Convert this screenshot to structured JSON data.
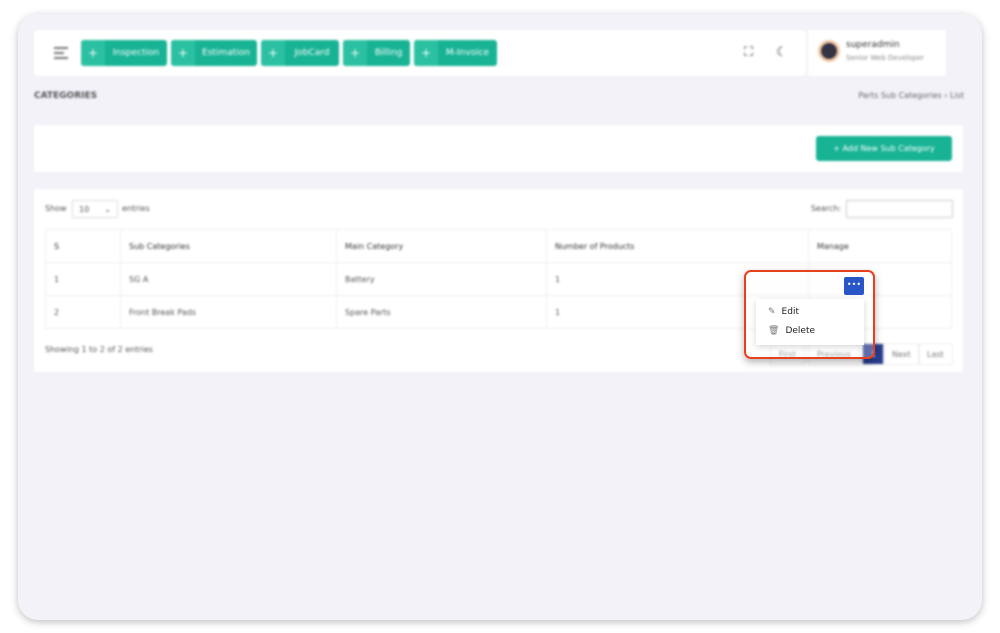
{
  "header": {
    "quick_buttons": [
      "Inspection",
      "Estimation",
      "JobCard",
      "Billing",
      "M-Invoice"
    ]
  },
  "profile": {
    "name": "superadmin",
    "role": "Senior Web Developer"
  },
  "page": {
    "title": "CATEGORIES",
    "breadcrumb": [
      "Parts Sub Categories",
      "List"
    ]
  },
  "actions": {
    "add_label": "+ Add New Sub Category"
  },
  "table": {
    "show": "Show",
    "entries_value": "10",
    "entries": "entries",
    "search_label": "Search:",
    "columns": [
      "S",
      "Sub Categories",
      "Main Category",
      "Number of Products",
      "Manage"
    ],
    "rows": [
      [
        "1",
        "SG A",
        "Battery",
        "1"
      ],
      [
        "2",
        "Front Break Pads",
        "Spare Parts",
        "1"
      ]
    ],
    "info": "Showing 1 to 2 of 2 entries",
    "pagination": [
      "First",
      "Previous",
      "1",
      "Next",
      "Last"
    ]
  },
  "dropdown": {
    "toggle": "•••",
    "items": [
      "Edit",
      "Delete"
    ]
  },
  "colors": {
    "accent": "#17b394",
    "primary": "#2856c7",
    "highlight": "#e8401c"
  }
}
